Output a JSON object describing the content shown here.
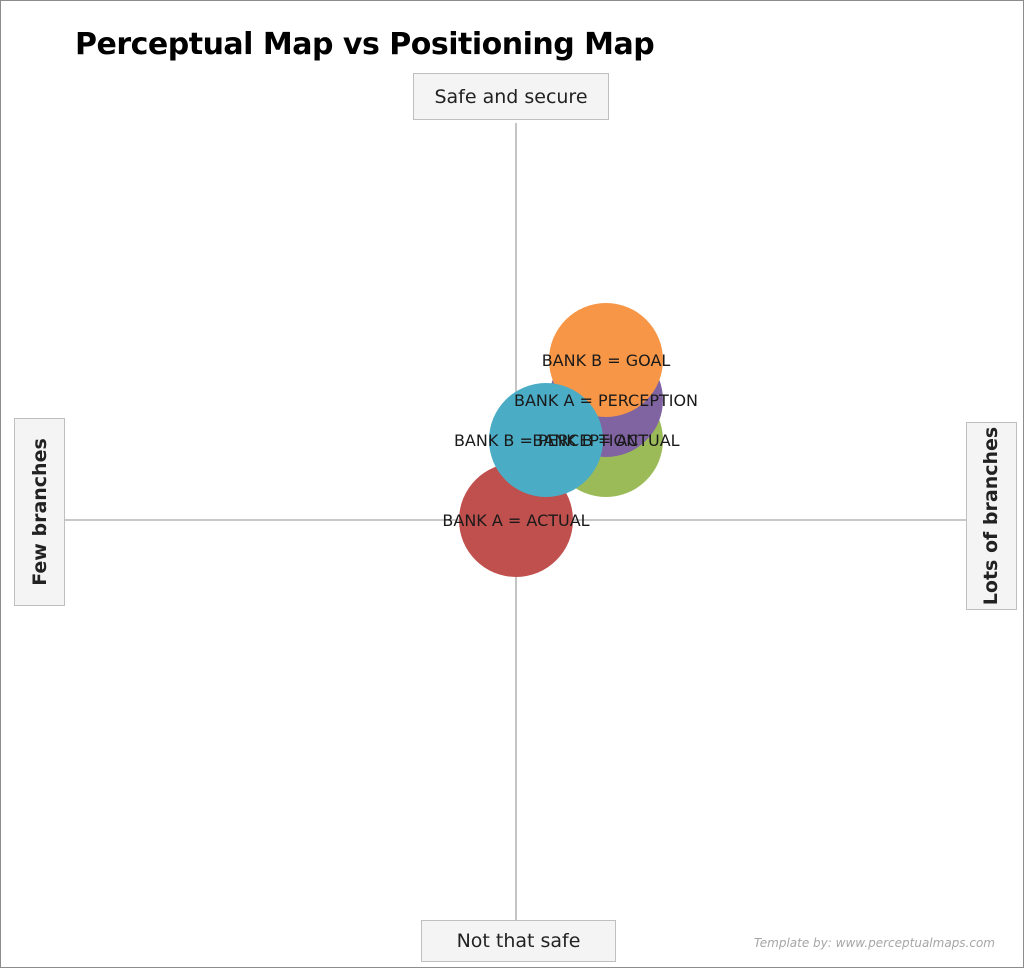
{
  "chart_data": {
    "type": "scatter",
    "title": "Perceptual Map vs Positioning Map",
    "axes": {
      "y_top": "Safe and secure",
      "y_bottom": "Not that safe",
      "x_left": "Few branches",
      "x_right": "Lots of branches"
    },
    "xlim": [
      -10,
      10
    ],
    "ylim": [
      -10,
      10
    ],
    "points": [
      {
        "label": "BANK A = ACTUAL",
        "x": 0,
        "y": 0,
        "color": "#c0504d"
      },
      {
        "label": "BANK B = ACTUAL",
        "x": 6,
        "y": 4,
        "color": "#9bbb59"
      },
      {
        "label": "BANK A = PERCEPTION",
        "x": 6,
        "y": 6,
        "color": "#8064a2"
      },
      {
        "label": "BANK B = GOAL",
        "x": 6,
        "y": 8,
        "color": "#f79646"
      },
      {
        "label": "BANK B = PERCEPTION",
        "x": 2,
        "y": 4,
        "color": "#4bacc6"
      }
    ]
  },
  "credit": "Template by: www.perceptualmaps.com"
}
